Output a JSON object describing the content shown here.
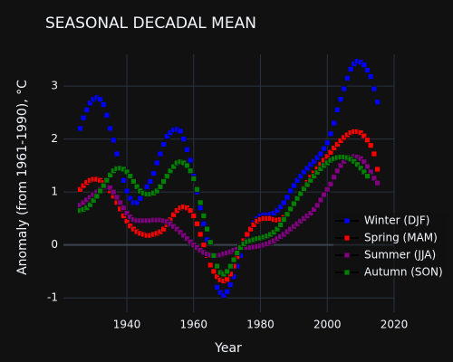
{
  "chart_data": {
    "type": "scatter",
    "title": "SEASONAL DECADAL MEAN",
    "x_label": "Year",
    "y_label": "Anomaly (from 1961-1990), °C",
    "x": [
      1926,
      1927,
      1928,
      1929,
      1930,
      1931,
      1932,
      1933,
      1934,
      1935,
      1936,
      1937,
      1938,
      1939,
      1940,
      1941,
      1942,
      1943,
      1944,
      1945,
      1946,
      1947,
      1948,
      1949,
      1950,
      1951,
      1952,
      1953,
      1954,
      1955,
      1956,
      1957,
      1958,
      1959,
      1960,
      1961,
      1962,
      1963,
      1964,
      1965,
      1966,
      1967,
      1968,
      1969,
      1970,
      1971,
      1972,
      1973,
      1974,
      1975,
      1976,
      1977,
      1978,
      1979,
      1980,
      1981,
      1982,
      1983,
      1984,
      1985,
      1986,
      1987,
      1988,
      1989,
      1990,
      1991,
      1992,
      1993,
      1994,
      1995,
      1996,
      1997,
      1998,
      1999,
      2000,
      2001,
      2002,
      2003,
      2004,
      2005,
      2006,
      2007,
      2008,
      2009,
      2010,
      2011,
      2012,
      2013,
      2014,
      2015
    ],
    "series": [
      {
        "name": "Winter (DJF)",
        "color": "#0000ff",
        "values": [
          2.2,
          2.4,
          2.55,
          2.68,
          2.75,
          2.78,
          2.75,
          2.65,
          2.45,
          2.2,
          1.98,
          1.72,
          1.45,
          1.22,
          1.02,
          0.88,
          0.8,
          0.8,
          0.88,
          1.0,
          1.1,
          1.2,
          1.35,
          1.55,
          1.72,
          1.9,
          2.05,
          2.12,
          2.17,
          2.18,
          2.15,
          2.0,
          1.8,
          1.6,
          1.3,
          1.0,
          0.7,
          0.4,
          0.1,
          -0.2,
          -0.5,
          -0.8,
          -0.9,
          -0.95,
          -0.88,
          -0.75,
          -0.6,
          -0.4,
          -0.2,
          0.0,
          0.15,
          0.3,
          0.42,
          0.5,
          0.55,
          0.57,
          0.57,
          0.58,
          0.6,
          0.65,
          0.72,
          0.8,
          0.9,
          1.02,
          1.12,
          1.22,
          1.3,
          1.38,
          1.45,
          1.52,
          1.58,
          1.65,
          1.72,
          1.82,
          1.93,
          2.1,
          2.3,
          2.55,
          2.75,
          2.95,
          3.15,
          3.32,
          3.42,
          3.47,
          3.45,
          3.4,
          3.3,
          3.18,
          2.95,
          2.7
        ]
      },
      {
        "name": "Spring (MAM)",
        "color": "#ff0000",
        "values": [
          1.05,
          1.12,
          1.18,
          1.22,
          1.24,
          1.24,
          1.22,
          1.18,
          1.1,
          1.02,
          0.92,
          0.8,
          0.68,
          0.55,
          0.45,
          0.36,
          0.3,
          0.25,
          0.22,
          0.2,
          0.18,
          0.18,
          0.2,
          0.22,
          0.25,
          0.3,
          0.38,
          0.48,
          0.57,
          0.65,
          0.7,
          0.72,
          0.7,
          0.65,
          0.55,
          0.4,
          0.2,
          0.0,
          -0.2,
          -0.38,
          -0.5,
          -0.6,
          -0.66,
          -0.68,
          -0.65,
          -0.55,
          -0.4,
          -0.22,
          -0.05,
          0.08,
          0.2,
          0.3,
          0.38,
          0.45,
          0.48,
          0.5,
          0.5,
          0.5,
          0.48,
          0.47,
          0.48,
          0.52,
          0.58,
          0.67,
          0.77,
          0.88,
          0.98,
          1.08,
          1.18,
          1.28,
          1.36,
          1.44,
          1.52,
          1.6,
          1.67,
          1.75,
          1.83,
          1.9,
          1.97,
          2.03,
          2.08,
          2.12,
          2.14,
          2.14,
          2.12,
          2.06,
          1.98,
          1.88,
          1.72,
          1.43
        ]
      },
      {
        "name": "Summer (JJA)",
        "color": "#800080",
        "values": [
          0.75,
          0.8,
          0.85,
          0.9,
          0.95,
          1.0,
          1.05,
          1.08,
          1.1,
          1.08,
          1.0,
          0.9,
          0.8,
          0.7,
          0.6,
          0.53,
          0.48,
          0.46,
          0.46,
          0.46,
          0.46,
          0.46,
          0.47,
          0.47,
          0.47,
          0.46,
          0.44,
          0.4,
          0.35,
          0.3,
          0.24,
          0.18,
          0.12,
          0.06,
          0.0,
          -0.05,
          -0.1,
          -0.14,
          -0.17,
          -0.19,
          -0.2,
          -0.2,
          -0.19,
          -0.17,
          -0.15,
          -0.13,
          -0.1,
          -0.08,
          -0.06,
          -0.05,
          -0.05,
          -0.05,
          -0.04,
          -0.03,
          -0.02,
          0.0,
          0.02,
          0.05,
          0.08,
          0.12,
          0.16,
          0.2,
          0.25,
          0.3,
          0.35,
          0.4,
          0.45,
          0.5,
          0.55,
          0.6,
          0.67,
          0.75,
          0.85,
          0.95,
          1.05,
          1.15,
          1.28,
          1.4,
          1.5,
          1.58,
          1.63,
          1.66,
          1.67,
          1.66,
          1.63,
          1.57,
          1.48,
          1.38,
          1.26,
          1.17
        ]
      },
      {
        "name": "Autumn (SON)",
        "color": "#008000",
        "values": [
          0.65,
          0.67,
          0.7,
          0.76,
          0.84,
          0.92,
          1.02,
          1.12,
          1.22,
          1.32,
          1.4,
          1.44,
          1.45,
          1.43,
          1.38,
          1.3,
          1.2,
          1.1,
          1.02,
          0.98,
          0.96,
          0.96,
          0.98,
          1.02,
          1.1,
          1.2,
          1.3,
          1.4,
          1.48,
          1.55,
          1.57,
          1.55,
          1.5,
          1.4,
          1.25,
          1.05,
          0.8,
          0.55,
          0.3,
          0.05,
          -0.2,
          -0.4,
          -0.52,
          -0.55,
          -0.5,
          -0.4,
          -0.28,
          -0.15,
          -0.05,
          0.02,
          0.06,
          0.08,
          0.1,
          0.12,
          0.13,
          0.15,
          0.17,
          0.2,
          0.24,
          0.3,
          0.38,
          0.48,
          0.58,
          0.68,
          0.78,
          0.88,
          0.97,
          1.06,
          1.14,
          1.22,
          1.3,
          1.37,
          1.44,
          1.5,
          1.55,
          1.6,
          1.63,
          1.65,
          1.66,
          1.66,
          1.65,
          1.62,
          1.58,
          1.52,
          1.45,
          1.38,
          1.3,
          null,
          null,
          null
        ]
      }
    ],
    "xlim": [
      1921,
      2020
    ],
    "xticks": [
      1940,
      1960,
      1980,
      2000,
      2020
    ],
    "ylim": [
      -1.27,
      3.6
    ],
    "yticks": [
      -1,
      0,
      1,
      2,
      3
    ],
    "grid": true,
    "legend": "bottom-right"
  }
}
